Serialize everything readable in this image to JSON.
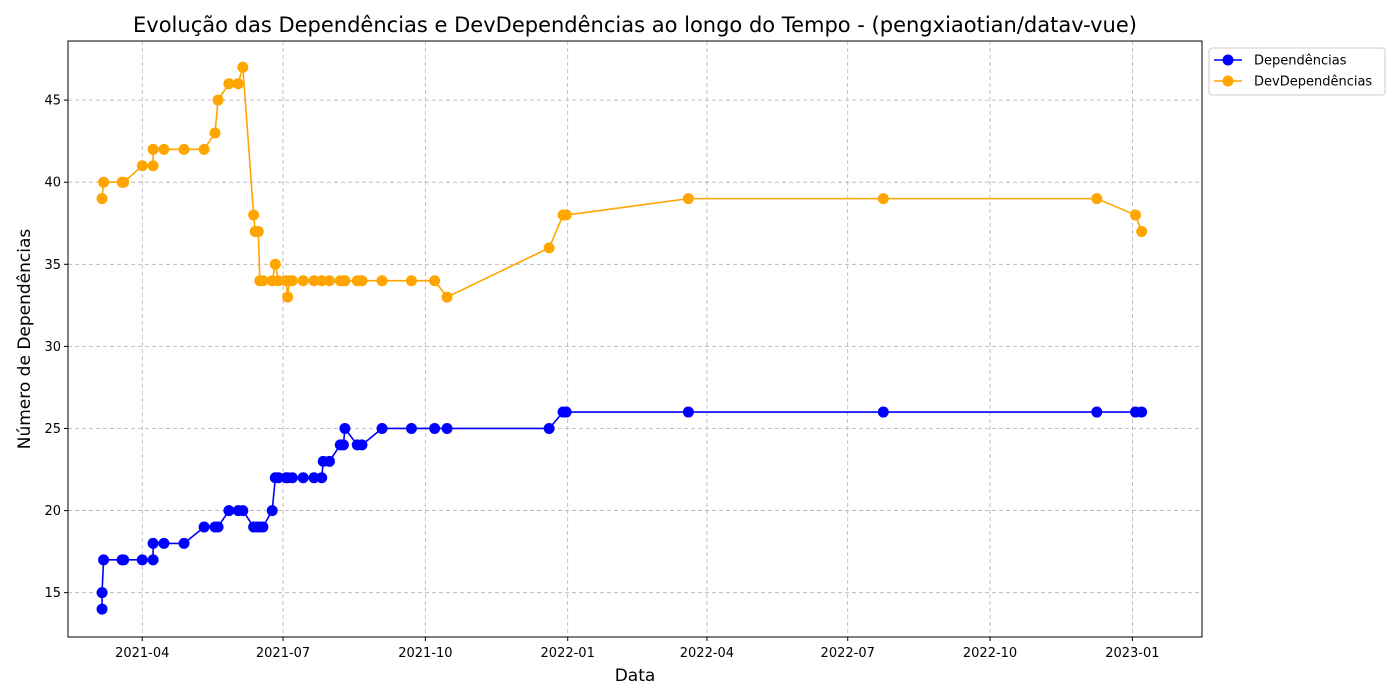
{
  "chart_data": {
    "type": "line",
    "title": "Evolução das Dependências e DevDependências ao longo do Tempo - (pengxiaotian/datav-vue)",
    "xlabel": "Data",
    "ylabel": "Número de Dependências",
    "xlim": [
      "2021-02-12",
      "2023-02-15"
    ],
    "ylim": [
      12.3,
      48.6
    ],
    "x_ticks": [
      "2021-04-01",
      "2021-07-01",
      "2021-10-01",
      "2022-01-01",
      "2022-04-01",
      "2022-07-01",
      "2022-10-01",
      "2023-01-01"
    ],
    "x_tick_labels": [
      "2021-04",
      "2021-07",
      "2021-10",
      "2022-01",
      "2022-04",
      "2022-07",
      "2022-10",
      "2023-01"
    ],
    "y_ticks": [
      15,
      20,
      25,
      30,
      35,
      40,
      45
    ],
    "grid": true,
    "legend_position": "upper right, outside plot",
    "series": [
      {
        "name": "Dependências",
        "color": "#0000ff",
        "points": [
          [
            "2021-03-06",
            14
          ],
          [
            "2021-03-06",
            15
          ],
          [
            "2021-03-07",
            17
          ],
          [
            "2021-03-19",
            17
          ],
          [
            "2021-03-20",
            17
          ],
          [
            "2021-04-01",
            17
          ],
          [
            "2021-04-08",
            17
          ],
          [
            "2021-04-08",
            18
          ],
          [
            "2021-04-15",
            18
          ],
          [
            "2021-04-28",
            18
          ],
          [
            "2021-05-11",
            19
          ],
          [
            "2021-05-18",
            19
          ],
          [
            "2021-05-20",
            19
          ],
          [
            "2021-05-27",
            20
          ],
          [
            "2021-06-02",
            20
          ],
          [
            "2021-06-05",
            20
          ],
          [
            "2021-06-12",
            19
          ],
          [
            "2021-06-14",
            19
          ],
          [
            "2021-06-16",
            19
          ],
          [
            "2021-06-18",
            19
          ],
          [
            "2021-06-24",
            20
          ],
          [
            "2021-06-26",
            22
          ],
          [
            "2021-06-28",
            22
          ],
          [
            "2021-07-03",
            22
          ],
          [
            "2021-07-04",
            22
          ],
          [
            "2021-07-07",
            22
          ],
          [
            "2021-07-14",
            22
          ],
          [
            "2021-07-21",
            22
          ],
          [
            "2021-07-26",
            22
          ],
          [
            "2021-07-27",
            23
          ],
          [
            "2021-07-31",
            23
          ],
          [
            "2021-08-07",
            24
          ],
          [
            "2021-08-09",
            24
          ],
          [
            "2021-08-10",
            25
          ],
          [
            "2021-08-18",
            24
          ],
          [
            "2021-08-21",
            24
          ],
          [
            "2021-09-03",
            25
          ],
          [
            "2021-09-22",
            25
          ],
          [
            "2021-10-07",
            25
          ],
          [
            "2021-10-15",
            25
          ],
          [
            "2021-12-20",
            25
          ],
          [
            "2021-12-29",
            26
          ],
          [
            "2021-12-31",
            26
          ],
          [
            "2022-03-20",
            26
          ],
          [
            "2022-07-24",
            26
          ],
          [
            "2022-12-09",
            26
          ],
          [
            "2023-01-03",
            26
          ],
          [
            "2023-01-07",
            26
          ]
        ]
      },
      {
        "name": "DevDependências",
        "color": "#ffa500",
        "points": [
          [
            "2021-03-06",
            39
          ],
          [
            "2021-03-07",
            40
          ],
          [
            "2021-03-19",
            40
          ],
          [
            "2021-03-20",
            40
          ],
          [
            "2021-04-01",
            41
          ],
          [
            "2021-04-08",
            41
          ],
          [
            "2021-04-08",
            42
          ],
          [
            "2021-04-15",
            42
          ],
          [
            "2021-04-28",
            42
          ],
          [
            "2021-05-11",
            42
          ],
          [
            "2021-05-18",
            43
          ],
          [
            "2021-05-20",
            45
          ],
          [
            "2021-05-27",
            46
          ],
          [
            "2021-06-02",
            46
          ],
          [
            "2021-06-05",
            47
          ],
          [
            "2021-06-12",
            38
          ],
          [
            "2021-06-13",
            37
          ],
          [
            "2021-06-15",
            37
          ],
          [
            "2021-06-16",
            34
          ],
          [
            "2021-06-18",
            34
          ],
          [
            "2021-06-24",
            34
          ],
          [
            "2021-06-26",
            35
          ],
          [
            "2021-06-28",
            34
          ],
          [
            "2021-07-03",
            34
          ],
          [
            "2021-07-04",
            33
          ],
          [
            "2021-07-05",
            34
          ],
          [
            "2021-07-07",
            34
          ],
          [
            "2021-07-14",
            34
          ],
          [
            "2021-07-21",
            34
          ],
          [
            "2021-07-26",
            34
          ],
          [
            "2021-07-31",
            34
          ],
          [
            "2021-08-07",
            34
          ],
          [
            "2021-08-09",
            34
          ],
          [
            "2021-08-10",
            34
          ],
          [
            "2021-08-18",
            34
          ],
          [
            "2021-08-21",
            34
          ],
          [
            "2021-09-03",
            34
          ],
          [
            "2021-09-22",
            34
          ],
          [
            "2021-10-07",
            34
          ],
          [
            "2021-10-15",
            33
          ],
          [
            "2021-12-20",
            36
          ],
          [
            "2021-12-29",
            38
          ],
          [
            "2021-12-31",
            38
          ],
          [
            "2022-03-20",
            39
          ],
          [
            "2022-07-24",
            39
          ],
          [
            "2022-12-09",
            39
          ],
          [
            "2023-01-03",
            38
          ],
          [
            "2023-01-07",
            37
          ]
        ]
      }
    ]
  }
}
